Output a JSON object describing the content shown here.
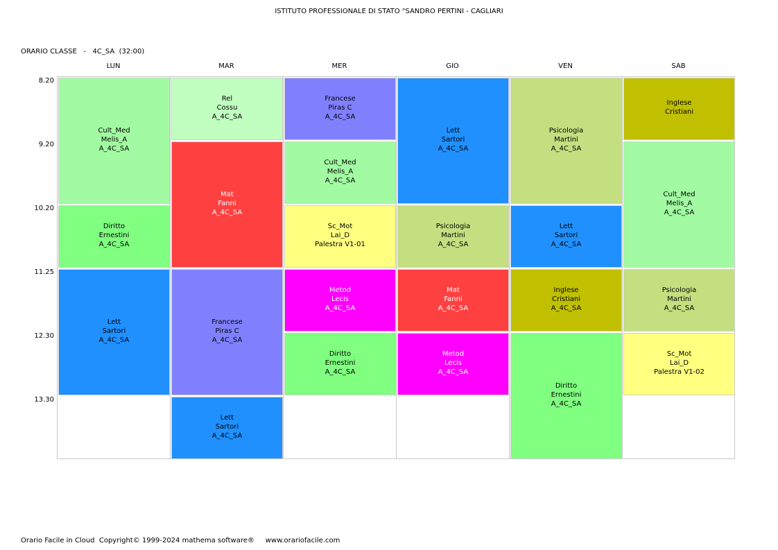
{
  "header": {
    "title": "ISTITUTO PROFESSIONALE DI STATO \"SANDRO PERTINI - CAGLIARI"
  },
  "class_label": "ORARIO CLASSE   -   4C_SA  (32:00)",
  "days": [
    "LUN",
    "MAR",
    "MER",
    "GIO",
    "VEN",
    "SAB"
  ],
  "times": [
    "8.20",
    "9.20",
    "10.20",
    "11.25",
    "12.30",
    "13.30"
  ],
  "colors": {
    "cult_med": "#a2fba2",
    "diritto": "#80ff80",
    "lett": "#2090ff",
    "rel": "#c0ffc0",
    "mat": "#ff4040",
    "francese": "#8080ff",
    "sc_mot": "#ffff80",
    "metod": "#ff00ff",
    "psicologia": "#c3df80",
    "inglese": "#c0c000"
  },
  "lessons": [
    {
      "day": 0,
      "start": 0,
      "span": 2,
      "lines": [
        "Cult_Med",
        "Melis_A",
        "A_4C_SA"
      ],
      "color": "#a2fba2",
      "text": "#000000"
    },
    {
      "day": 0,
      "start": 2,
      "span": 1,
      "lines": [
        "Diritto",
        "Ernestini",
        "A_4C_SA"
      ],
      "color": "#80ff80",
      "text": "#000000"
    },
    {
      "day": 0,
      "start": 3,
      "span": 2,
      "lines": [
        "Lett",
        "Sartori",
        "A_4C_SA"
      ],
      "color": "#2090ff",
      "text": "#000000"
    },
    {
      "day": 1,
      "start": 0,
      "span": 1,
      "lines": [
        "Rel",
        "Cossu",
        "A_4C_SA"
      ],
      "color": "#c0ffc0",
      "text": "#000000"
    },
    {
      "day": 1,
      "start": 1,
      "span": 2,
      "lines": [
        "Mat",
        "Fanni",
        "A_4C_SA"
      ],
      "color": "#ff4040",
      "text": "#ffffff"
    },
    {
      "day": 1,
      "start": 3,
      "span": 2,
      "lines": [
        "Francese",
        "Piras C",
        "A_4C_SA"
      ],
      "color": "#8080ff",
      "text": "#000000"
    },
    {
      "day": 1,
      "start": 5,
      "span": 1,
      "lines": [
        "Lett",
        "Sartori",
        "A_4C_SA"
      ],
      "color": "#2090ff",
      "text": "#000000"
    },
    {
      "day": 2,
      "start": 0,
      "span": 1,
      "lines": [
        "Francese",
        "Piras C",
        "A_4C_SA"
      ],
      "color": "#8080ff",
      "text": "#000000"
    },
    {
      "day": 2,
      "start": 1,
      "span": 1,
      "lines": [
        "Cult_Med",
        "Melis_A",
        "A_4C_SA"
      ],
      "color": "#a2fba2",
      "text": "#000000"
    },
    {
      "day": 2,
      "start": 2,
      "span": 1,
      "lines": [
        "Sc_Mot",
        "Lai_D",
        "Palestra V1-01"
      ],
      "color": "#ffff80",
      "text": "#000000"
    },
    {
      "day": 2,
      "start": 3,
      "span": 1,
      "lines": [
        "Metod",
        "Lecis",
        "A_4C_SA"
      ],
      "color": "#ff00ff",
      "text": "#ffffff"
    },
    {
      "day": 2,
      "start": 4,
      "span": 1,
      "lines": [
        "Diritto",
        "Ernestini",
        "A_4C_SA"
      ],
      "color": "#80ff80",
      "text": "#000000"
    },
    {
      "day": 3,
      "start": 0,
      "span": 2,
      "lines": [
        "Lett",
        "Sartori",
        "A_4C_SA"
      ],
      "color": "#2090ff",
      "text": "#000000"
    },
    {
      "day": 3,
      "start": 2,
      "span": 1,
      "lines": [
        "Psicologia",
        "Martini",
        "A_4C_SA"
      ],
      "color": "#c3df80",
      "text": "#000000"
    },
    {
      "day": 3,
      "start": 3,
      "span": 1,
      "lines": [
        "Mat",
        "Fanni",
        "A_4C_SA"
      ],
      "color": "#ff4040",
      "text": "#ffffff"
    },
    {
      "day": 3,
      "start": 4,
      "span": 1,
      "lines": [
        "Metod",
        "Lecis",
        "A_4C_SA"
      ],
      "color": "#ff00ff",
      "text": "#ffffff"
    },
    {
      "day": 4,
      "start": 0,
      "span": 2,
      "lines": [
        "Psicologia",
        "Martini",
        "A_4C_SA"
      ],
      "color": "#c3df80",
      "text": "#000000"
    },
    {
      "day": 4,
      "start": 2,
      "span": 1,
      "lines": [
        "Lett",
        "Sartori",
        "A_4C_SA"
      ],
      "color": "#2090ff",
      "text": "#000000"
    },
    {
      "day": 4,
      "start": 3,
      "span": 1,
      "lines": [
        "Inglese",
        "Cristiani",
        "A_4C_SA"
      ],
      "color": "#c0c000",
      "text": "#000000"
    },
    {
      "day": 4,
      "start": 4,
      "span": 2,
      "lines": [
        "Diritto",
        "Ernestini",
        "A_4C_SA"
      ],
      "color": "#80ff80",
      "text": "#000000"
    },
    {
      "day": 5,
      "start": 0,
      "span": 1,
      "lines": [
        "Inglese",
        "Cristiani"
      ],
      "color": "#c0c000",
      "text": "#000000"
    },
    {
      "day": 5,
      "start": 1,
      "span": 2,
      "lines": [
        "Cult_Med",
        "Melis_A",
        "A_4C_SA"
      ],
      "color": "#a2fba2",
      "text": "#000000"
    },
    {
      "day": 5,
      "start": 3,
      "span": 1,
      "lines": [
        "Psicologia",
        "Martini",
        "A_4C_SA"
      ],
      "color": "#c3df80",
      "text": "#000000"
    },
    {
      "day": 5,
      "start": 4,
      "span": 1,
      "lines": [
        "Sc_Mot",
        "Lai_D",
        "Palestra V1-02"
      ],
      "color": "#ffff80",
      "text": "#000000"
    }
  ],
  "footer": "Orario Facile in Cloud  Copyright© 1999-2024 mathema software®     www.orariofacile.com"
}
